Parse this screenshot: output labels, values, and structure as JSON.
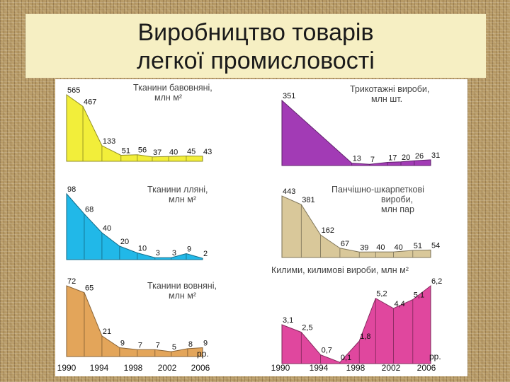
{
  "title_line1": "Виробництво товарів",
  "title_line2": "легкої промисловості",
  "year_unit": "рр.",
  "x_tick_labels": [
    "1990",
    "1994",
    "1998",
    "2002",
    "2006"
  ],
  "chart_data": [
    {
      "type": "area",
      "title_lines": [
        "Тканини бавовняні,",
        "млн м²"
      ],
      "color": "#f2ee3a",
      "labels": [
        "565",
        "467",
        "133",
        "51",
        "56",
        "37",
        "40",
        "45",
        "43"
      ],
      "values": [
        565,
        467,
        133,
        51,
        56,
        37,
        40,
        45,
        43
      ]
    },
    {
      "type": "area",
      "title_lines": [
        "Трикотажні вироби,",
        "млн шт."
      ],
      "color": "#a23bb5",
      "labels": [
        "351",
        "13",
        "7",
        "17",
        "20",
        "26",
        "31"
      ],
      "values": [
        351,
        13,
        7,
        17,
        20,
        26,
        31
      ]
    },
    {
      "type": "area",
      "title_lines": [
        "Тканини лляні,",
        "млн м²"
      ],
      "color": "#21b8e8",
      "labels": [
        "98",
        "68",
        "40",
        "20",
        "10",
        "3",
        "3",
        "9",
        "2"
      ],
      "values": [
        98,
        68,
        40,
        20,
        10,
        3,
        3,
        9,
        2
      ]
    },
    {
      "type": "area",
      "title_lines": [
        "Панчішно-шкарпеткові",
        "вироби,",
        "млн пар"
      ],
      "color": "#d9c89a",
      "labels": [
        "443",
        "381",
        "162",
        "67",
        "39",
        "40",
        "40",
        "51",
        "54"
      ],
      "values": [
        443,
        381,
        162,
        67,
        39,
        40,
        40,
        51,
        54
      ]
    },
    {
      "type": "area",
      "title_lines": [
        "Тканини вовняні,",
        "млн м²"
      ],
      "color": "#e3a55a",
      "labels": [
        "72",
        "65",
        "21",
        "9",
        "7",
        "7",
        "5",
        "8",
        "9"
      ],
      "values": [
        72,
        65,
        21,
        9,
        7,
        7,
        5,
        8,
        9
      ]
    },
    {
      "type": "area",
      "title_lines": [
        "Килими, килимові вироби, млн м²"
      ],
      "color": "#e0479e",
      "labels": [
        "3,1",
        "2,5",
        "0,7",
        "0,1",
        "1,8",
        "5,2",
        "4,4",
        "5,1",
        "6,2"
      ],
      "values": [
        3.1,
        2.5,
        0.7,
        0.1,
        1.8,
        5.2,
        4.4,
        5.1,
        6.2
      ]
    }
  ]
}
